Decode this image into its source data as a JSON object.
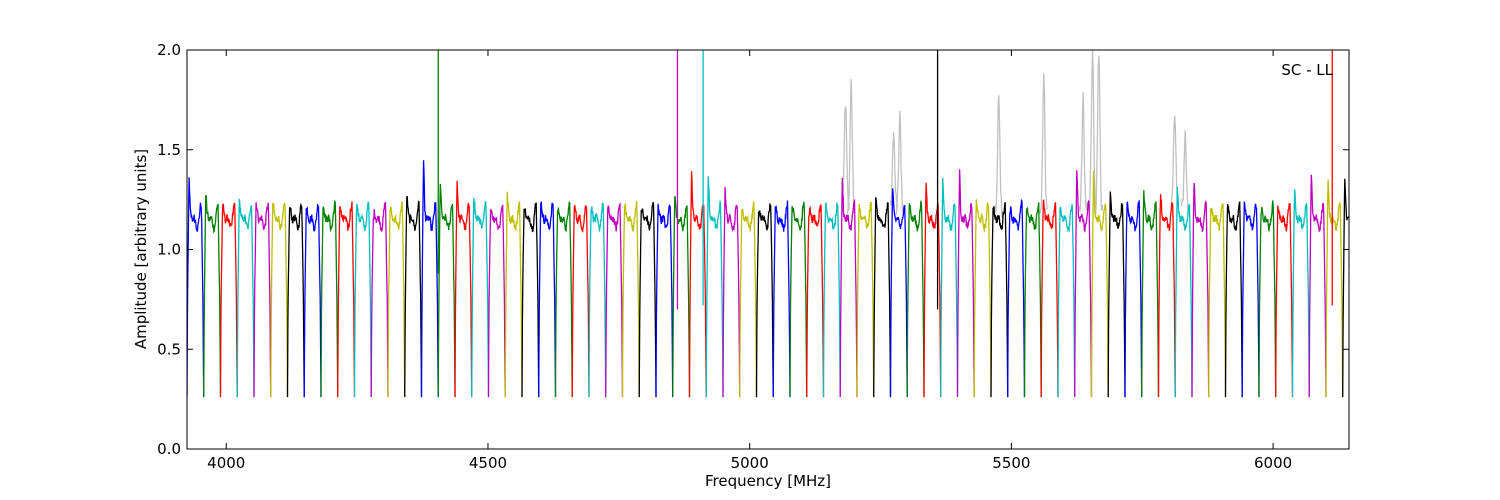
{
  "chart_data": {
    "type": "line",
    "title": "",
    "annotation": "SC - LL",
    "xlabel": "Frequency [MHz]",
    "ylabel": "Amplitude [arbitrary units]",
    "xlim": [
      3925,
      6145
    ],
    "ylim": [
      0.0,
      2.0
    ],
    "x_ticks": [
      4000,
      4500,
      5000,
      5500,
      6000
    ],
    "x_tick_labels": [
      "4000",
      "4500",
      "5000",
      "5500",
      "6000"
    ],
    "y_ticks": [
      0.0,
      0.5,
      1.0,
      1.5,
      2.0
    ],
    "y_tick_labels": [
      "0.0",
      "0.5",
      "1.0",
      "1.5",
      "2.0"
    ],
    "grid": false,
    "legend": "none",
    "channel_width_mhz": 32,
    "color_cycle": [
      "#0000ff",
      "#008000",
      "#ff0000",
      "#00bfbf",
      "#bf00bf",
      "#bfbf00",
      "#000000"
    ],
    "flagged_color": "#c0c0c0",
    "channel_start_frequencies_mhz": [
      3925,
      3957,
      3989,
      4021,
      4053,
      4085,
      4117,
      4149,
      4181,
      4213,
      4245,
      4277,
      4309,
      4341,
      4373,
      4405,
      4437,
      4469,
      4501,
      4533,
      4565,
      4597,
      4629,
      4661,
      4693,
      4725,
      4757,
      4789,
      4821,
      4853,
      4885,
      4917,
      4949,
      4981,
      5013,
      5045,
      5077,
      5109,
      5141,
      5173,
      5205,
      5237,
      5269,
      5301,
      5333,
      5365,
      5397,
      5429,
      5461,
      5493,
      5525,
      5557,
      5589,
      5621,
      5653,
      5685,
      5717,
      5749,
      5781,
      5813,
      5845,
      5877,
      5909,
      5941,
      5973,
      6005,
      6037,
      6069,
      6101,
      6133
    ],
    "channel_peak_amplitudes": [
      1.38,
      1.28,
      1.22,
      1.24,
      1.24,
      1.24,
      1.21,
      1.2,
      1.22,
      1.22,
      1.23,
      1.15,
      1.2,
      1.28,
      1.48,
      1.35,
      1.36,
      1.28,
      1.2,
      1.28,
      1.22,
      1.25,
      1.2,
      1.21,
      1.2,
      1.2,
      1.24,
      1.2,
      1.22,
      1.28,
      1.4,
      1.38,
      1.32,
      1.18,
      1.17,
      1.2,
      1.22,
      1.18,
      1.24,
      1.36,
      1.22,
      1.26,
      1.32,
      1.24,
      1.35,
      1.38,
      1.4,
      1.25,
      1.22,
      1.2,
      1.22,
      1.25,
      1.22,
      1.42,
      1.4,
      1.28,
      1.25,
      1.3,
      1.3,
      1.32,
      1.36,
      1.2,
      1.24,
      1.24,
      1.18,
      1.22,
      1.3,
      1.4,
      1.35,
      1.38
    ],
    "spike_lines": [
      {
        "x": 4405,
        "y_top": 2.0,
        "y_bottom": 0.88,
        "color": "#008000"
      },
      {
        "x": 4862,
        "y_top": 2.0,
        "y_bottom": 0.7,
        "color": "#bf00bf"
      },
      {
        "x": 4911,
        "y_top": 2.0,
        "y_bottom": 0.72,
        "color": "#00bfbf"
      },
      {
        "x": 5359,
        "y_top": 2.0,
        "y_bottom": 0.7,
        "color": "#000000"
      },
      {
        "x": 6113,
        "y_top": 2.0,
        "y_bottom": 0.72,
        "color": "#ff0000"
      }
    ],
    "flagged_peaks": [
      {
        "x": 5183,
        "y": 1.75
      },
      {
        "x": 5194,
        "y": 1.82
      },
      {
        "x": 5275,
        "y": 1.62
      },
      {
        "x": 5287,
        "y": 1.66
      },
      {
        "x": 5476,
        "y": 1.78
      },
      {
        "x": 5562,
        "y": 1.85
      },
      {
        "x": 5637,
        "y": 1.75
      },
      {
        "x": 5655,
        "y": 2.0
      },
      {
        "x": 5667,
        "y": 2.0
      },
      {
        "x": 5812,
        "y": 1.72
      },
      {
        "x": 5832,
        "y": 1.58
      }
    ]
  }
}
